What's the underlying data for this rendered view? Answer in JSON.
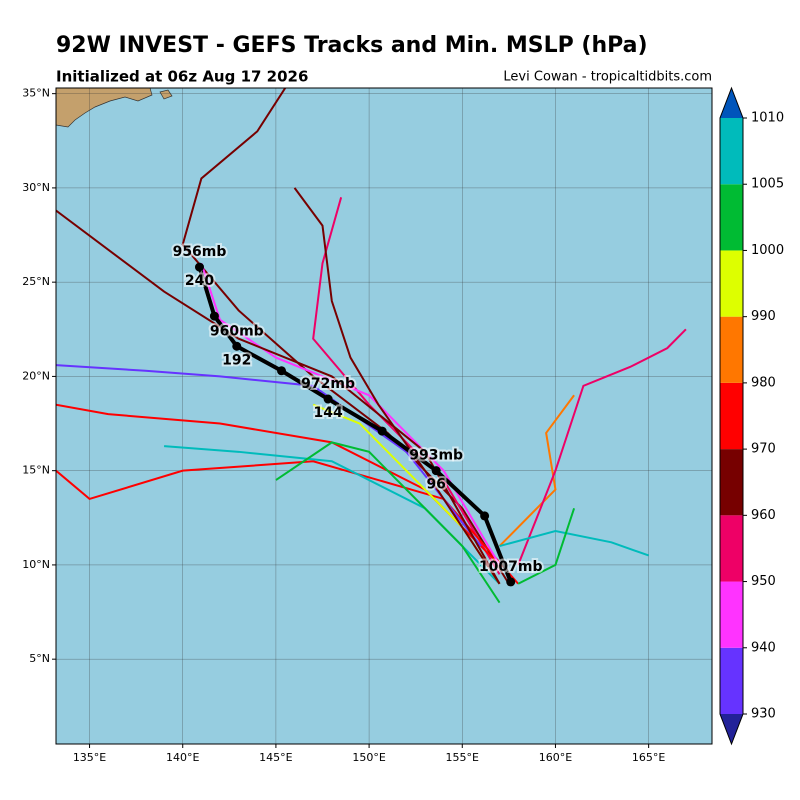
{
  "header": {
    "title": "92W INVEST - GEFS Tracks and Min. MSLP (hPa)",
    "subtitle": "Initialized at 06z Aug 17 2026",
    "credit": "Levi Cowan - tropicaltidbits.com"
  },
  "map": {
    "xlim": [
      133.2,
      168.4
    ],
    "ylim": [
      0.5,
      35.3
    ],
    "xticks": [
      {
        "value": 135,
        "label": "135°E"
      },
      {
        "value": 140,
        "label": "140°E"
      },
      {
        "value": 145,
        "label": "145°E"
      },
      {
        "value": 150,
        "label": "150°E"
      },
      {
        "value": 155,
        "label": "155°E"
      },
      {
        "value": 160,
        "label": "160°E"
      },
      {
        "value": 165,
        "label": "165°E"
      }
    ],
    "yticks": [
      {
        "value": 5,
        "label": "5°N"
      },
      {
        "value": 10,
        "label": "10°N"
      },
      {
        "value": 15,
        "label": "15°N"
      },
      {
        "value": 20,
        "label": "20°N"
      },
      {
        "value": 25,
        "label": "25°N"
      },
      {
        "value": 30,
        "label": "30°N"
      },
      {
        "value": 35,
        "label": "35°N"
      }
    ],
    "ocean_color": "#96cde0",
    "tracks": [
      {
        "color": "#770000",
        "lon": [
          157.5,
          155,
          151,
          147,
          143,
          140,
          141,
          144,
          145.5
        ],
        "lat": [
          9,
          13,
          17,
          20,
          23.5,
          27,
          30.5,
          33,
          35.3
        ]
      },
      {
        "color": "#ee0066",
        "lon": [
          157,
          154,
          150,
          147,
          147.5,
          148.5
        ],
        "lat": [
          9.5,
          14.5,
          18.5,
          22,
          26,
          29.5
        ]
      },
      {
        "color": "#ff0000",
        "lon": [
          157,
          153,
          148,
          142,
          136,
          133.2
        ],
        "lat": [
          10,
          14,
          16.5,
          17.5,
          18,
          18.5
        ]
      },
      {
        "color": "#ff0000",
        "lon": [
          158,
          154,
          147,
          140,
          135,
          133.2
        ],
        "lat": [
          9,
          13.5,
          15.5,
          15,
          13.5,
          15
        ]
      },
      {
        "color": "#ff33ff",
        "lon": [
          157,
          154,
          150,
          145,
          142,
          141
        ],
        "lat": [
          10,
          15,
          19,
          21,
          23,
          26
        ]
      },
      {
        "color": "#6633ff",
        "lon": [
          156,
          152,
          147,
          142,
          138,
          133.2
        ],
        "lat": [
          11,
          16,
          19.5,
          20,
          20.3,
          20.6
        ]
      },
      {
        "color": "#00bbbb",
        "lon": [
          157,
          153,
          148,
          143,
          139
        ],
        "lat": [
          9,
          13,
          15.5,
          16,
          16.3
        ]
      },
      {
        "color": "#00bb33",
        "lon": [
          157,
          155,
          153,
          150,
          148,
          145
        ],
        "lat": [
          8,
          11,
          13,
          16,
          16.5,
          14.5
        ]
      },
      {
        "color": "#ff7700",
        "lon": [
          157,
          160,
          159.5,
          161
        ],
        "lat": [
          11,
          14,
          17,
          19
        ]
      },
      {
        "color": "#ee0066",
        "lon": [
          158,
          160,
          161.5,
          164,
          166,
          167
        ],
        "lat": [
          10,
          15,
          19.5,
          20.5,
          21.5,
          22.5
        ]
      },
      {
        "color": "#ddff00",
        "lon": [
          157,
          155,
          152,
          149.5,
          147
        ],
        "lat": [
          9,
          12,
          15,
          17.5,
          18.5
        ]
      },
      {
        "color": "#770000",
        "lon": [
          157,
          153,
          150.5,
          149,
          148,
          147.5,
          146
        ],
        "lat": [
          9,
          15,
          18.5,
          21,
          24,
          28,
          30
        ]
      },
      {
        "color": "#00bbbb",
        "lon": [
          157,
          160,
          163,
          165
        ],
        "lat": [
          11,
          11.8,
          11.2,
          10.5
        ]
      },
      {
        "color": "#00bb33",
        "lon": [
          158,
          160,
          161
        ],
        "lat": [
          9,
          10,
          13
        ]
      },
      {
        "color": "#770000",
        "lon": [
          157,
          153,
          148,
          143,
          139,
          133.2
        ],
        "lat": [
          9,
          16,
          20,
          22,
          24.5,
          28.8
        ]
      }
    ],
    "mean_track": {
      "lon": [
        157.6,
        156.2,
        153.6,
        150.7,
        147.8,
        145.3,
        142.9,
        141.7,
        140.9
      ],
      "lat": [
        9.1,
        12.6,
        15.0,
        17.1,
        18.8,
        20.3,
        21.6,
        23.2,
        25.8
      ],
      "pressure_labels": [
        "1007mb",
        null,
        "993mb",
        null,
        "972mb",
        null,
        "960mb",
        null,
        "956mb"
      ],
      "hour_labels": [
        null,
        null,
        96,
        null,
        144,
        null,
        192,
        null,
        240
      ]
    }
  },
  "colorbar": {
    "levels": [
      930,
      940,
      950,
      960,
      970,
      980,
      990,
      1000,
      1005,
      1010
    ],
    "colors": [
      "#6633ff",
      "#ff33ff",
      "#ee0066",
      "#770000",
      "#ff0000",
      "#ff7700",
      "#ddff00",
      "#00bb33",
      "#00bbbb"
    ],
    "under_color": "#222299",
    "over_color": "#0055bb"
  }
}
